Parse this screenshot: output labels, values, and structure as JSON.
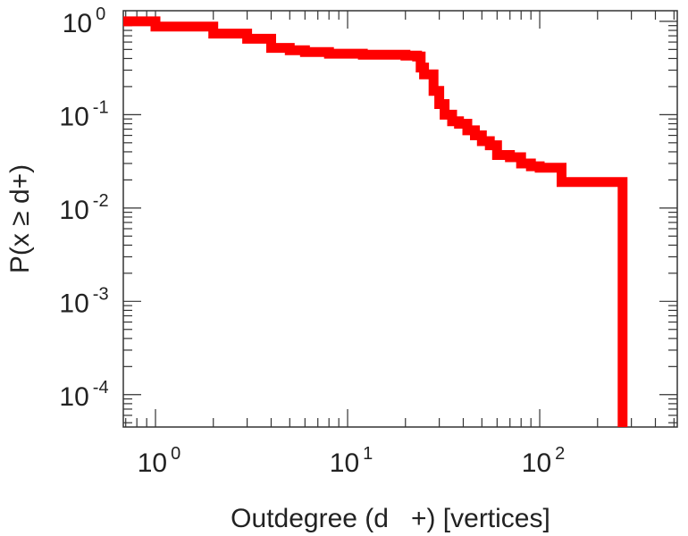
{
  "chart_data": {
    "type": "line",
    "step": true,
    "xlabel": "Outdegree (d   +) [vertices]",
    "ylabel": "P(x ≥ d+)",
    "x_scale": "log",
    "y_scale": "log",
    "xlim": [
      0.68,
      520
    ],
    "ylim": [
      4.5e-05,
      1.3
    ],
    "grid": false,
    "legend": "none",
    "x_ticks": [
      {
        "value": 1,
        "base": "10",
        "exp": "0"
      },
      {
        "value": 10,
        "base": "10",
        "exp": "1"
      },
      {
        "value": 100,
        "base": "10",
        "exp": "2"
      }
    ],
    "y_ticks": [
      {
        "value": 1,
        "base": "10",
        "exp": "0"
      },
      {
        "value": 0.1,
        "base": "10",
        "exp": "-1"
      },
      {
        "value": 0.01,
        "base": "10",
        "exp": "-2"
      },
      {
        "value": 0.001,
        "base": "10",
        "exp": "-3"
      },
      {
        "value": 0.0001,
        "base": "10",
        "exp": "-4"
      }
    ],
    "series": [
      {
        "color": "#ff0000",
        "x": [
          0.68,
          1,
          2,
          3,
          4,
          5,
          6,
          8,
          12,
          20,
          23,
          24,
          25,
          28,
          30,
          32,
          35,
          38,
          42,
          46,
          50,
          55,
          60,
          70,
          80,
          90,
          100,
          130,
          270,
          270
        ],
        "y": [
          1.0,
          0.88,
          0.74,
          0.65,
          0.52,
          0.49,
          0.47,
          0.45,
          0.44,
          0.43,
          0.42,
          0.32,
          0.27,
          0.18,
          0.13,
          0.1,
          0.085,
          0.08,
          0.068,
          0.06,
          0.052,
          0.047,
          0.037,
          0.035,
          0.03,
          0.028,
          0.027,
          0.019,
          0.019,
          4.5e-05
        ]
      }
    ]
  }
}
